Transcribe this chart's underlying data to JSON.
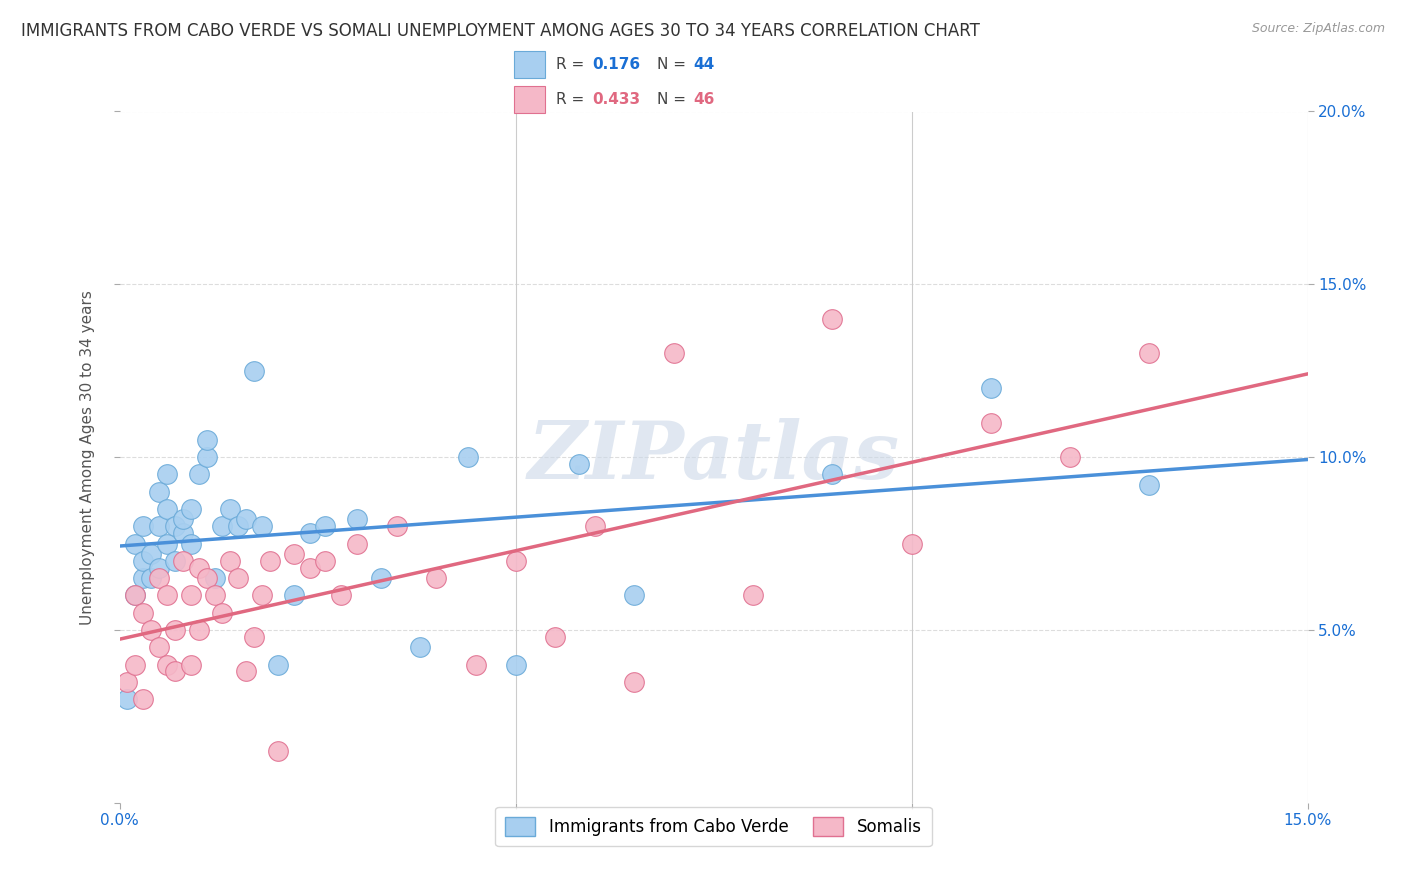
{
  "title": "IMMIGRANTS FROM CABO VERDE VS SOMALI UNEMPLOYMENT AMONG AGES 30 TO 34 YEARS CORRELATION CHART",
  "source": "Source: ZipAtlas.com",
  "ylabel": "Unemployment Among Ages 30 to 34 years",
  "xlim": [
    0.0,
    0.15
  ],
  "ylim": [
    0.0,
    0.2
  ],
  "background_color": "#ffffff",
  "grid_color": "#dddddd",
  "series": [
    {
      "name": "Immigrants from Cabo Verde",
      "R": 0.176,
      "N": 44,
      "color": "#a8cff0",
      "edge_color": "#6aaad8",
      "line_color": "#4a90d9",
      "R_color": "#1a6fd4",
      "x": [
        0.001,
        0.002,
        0.002,
        0.003,
        0.003,
        0.003,
        0.004,
        0.004,
        0.005,
        0.005,
        0.005,
        0.006,
        0.006,
        0.006,
        0.007,
        0.007,
        0.008,
        0.008,
        0.009,
        0.009,
        0.01,
        0.011,
        0.011,
        0.012,
        0.013,
        0.014,
        0.015,
        0.016,
        0.017,
        0.018,
        0.02,
        0.022,
        0.024,
        0.026,
        0.03,
        0.033,
        0.038,
        0.044,
        0.05,
        0.058,
        0.065,
        0.09,
        0.11,
        0.13
      ],
      "y": [
        0.03,
        0.06,
        0.075,
        0.065,
        0.07,
        0.08,
        0.065,
        0.072,
        0.068,
        0.08,
        0.09,
        0.075,
        0.085,
        0.095,
        0.07,
        0.08,
        0.078,
        0.082,
        0.075,
        0.085,
        0.095,
        0.1,
        0.105,
        0.065,
        0.08,
        0.085,
        0.08,
        0.082,
        0.125,
        0.08,
        0.04,
        0.06,
        0.078,
        0.08,
        0.082,
        0.065,
        0.045,
        0.1,
        0.04,
        0.098,
        0.06,
        0.095,
        0.12,
        0.092
      ]
    },
    {
      "name": "Somalis",
      "R": 0.433,
      "N": 46,
      "color": "#f5b8c8",
      "edge_color": "#e07090",
      "line_color": "#e06880",
      "R_color": "#e06880",
      "x": [
        0.001,
        0.002,
        0.002,
        0.003,
        0.003,
        0.004,
        0.005,
        0.005,
        0.006,
        0.006,
        0.007,
        0.007,
        0.008,
        0.009,
        0.009,
        0.01,
        0.01,
        0.011,
        0.012,
        0.013,
        0.014,
        0.015,
        0.016,
        0.017,
        0.018,
        0.019,
        0.02,
        0.022,
        0.024,
        0.026,
        0.028,
        0.03,
        0.035,
        0.04,
        0.045,
        0.05,
        0.055,
        0.06,
        0.065,
        0.07,
        0.08,
        0.09,
        0.1,
        0.11,
        0.12,
        0.13
      ],
      "y": [
        0.035,
        0.04,
        0.06,
        0.03,
        0.055,
        0.05,
        0.045,
        0.065,
        0.04,
        0.06,
        0.038,
        0.05,
        0.07,
        0.04,
        0.06,
        0.05,
        0.068,
        0.065,
        0.06,
        0.055,
        0.07,
        0.065,
        0.038,
        0.048,
        0.06,
        0.07,
        0.015,
        0.072,
        0.068,
        0.07,
        0.06,
        0.075,
        0.08,
        0.065,
        0.04,
        0.07,
        0.048,
        0.08,
        0.035,
        0.13,
        0.06,
        0.14,
        0.075,
        0.11,
        0.1,
        0.13
      ]
    }
  ],
  "title_fontsize": 12,
  "axis_label_fontsize": 11,
  "tick_fontsize": 11,
  "legend_fontsize": 12,
  "watermark": "ZIPatlas",
  "watermark_color": "#ccd8e8"
}
